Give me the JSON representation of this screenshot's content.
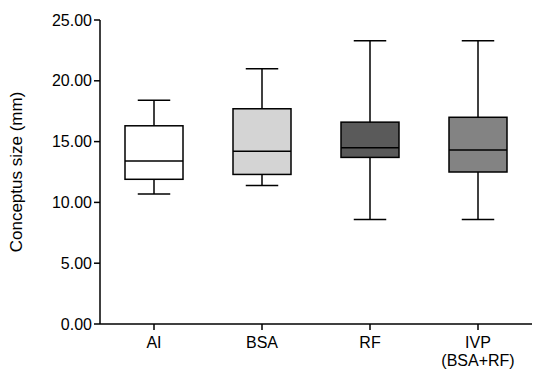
{
  "chart_data": {
    "type": "box",
    "ylabel": "Conceptus size (mm)",
    "categories": [
      "AI",
      "BSA",
      "RF",
      "IVP (BSA+RF)"
    ],
    "min": [
      10.7,
      11.4,
      8.6,
      8.6
    ],
    "q1": [
      11.9,
      12.3,
      13.7,
      12.5
    ],
    "median": [
      13.4,
      14.2,
      14.5,
      14.3
    ],
    "q3": [
      16.3,
      17.7,
      16.6,
      17.0
    ],
    "max": [
      18.4,
      21.0,
      23.3,
      23.3
    ],
    "colors": [
      "#ffffff",
      "#d4d4d4",
      "#5a5a5a",
      "#838383"
    ],
    "ylim": [
      0,
      25
    ],
    "yticks": [
      {
        "value": 0,
        "label": "0.00"
      },
      {
        "value": 5,
        "label": "5.00"
      },
      {
        "value": 10,
        "label": "10.00"
      },
      {
        "value": 15,
        "label": "15.00"
      },
      {
        "value": 20,
        "label": "20.00"
      },
      {
        "value": 25,
        "label": "25.00"
      }
    ]
  }
}
